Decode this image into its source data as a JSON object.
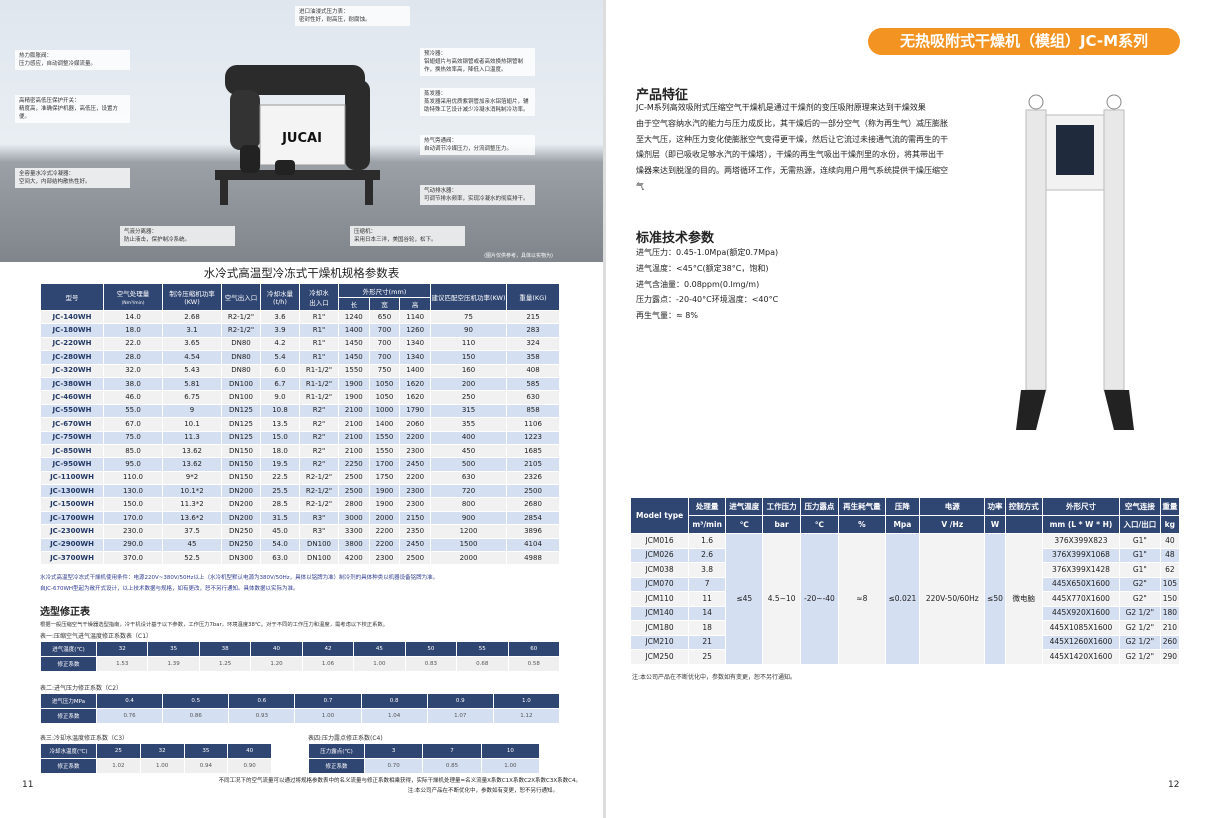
{
  "left": {
    "hero": {
      "callouts": [
        "进口油浸式压力表：\n密封性好，耐高压，耐腐蚀。",
        "热力膨胀阀：\n压力感应，自动调整冷媒流量。",
        "预冷器：\n铝翅翅片与高效钢管或者高效换热铜管制作，换热效率高，降低入口温度。",
        "高精密高低压保护开关：\n精度高，准确保护机器，高低压，设置方便。",
        "蒸发器：\n蒸发器采用优质紫铜管加亲水铝箔翅片，辅助特殊工艺设计减少冷凝水消耗制冷功率。",
        "热气旁通阀：\n自动调节冷媒压力，分流调整压力。",
        "全容量水冷式冷凝器：\n空间大，内部结构散热性好。",
        "气动排水器：\n可调节排水频率，实现冷凝水的彻底排干。",
        "气液分离器：\n防止液击，保护制冷系统。",
        "压缩机：\n采用日本三洋，美国谷轮，松下。"
      ],
      "brand": "JUCAI",
      "note": "(图片仅供参考，具体以实物为)"
    },
    "spec_title": "水冷式高温型冷冻式干燥机规格参数表",
    "spec_headers": {
      "model": "型号",
      "flow": "空气处理量",
      "flow_unit": "(Nm³/min)",
      "comp": "制冷压缩机功率(KW)",
      "port": "空气出入口",
      "water": "冷却水量(t/h)",
      "wport": "冷却水\n出入口",
      "dims": "外形尺寸(mm)",
      "l": "长",
      "w": "宽",
      "h": "高",
      "rec": "建议匹配空压机功率(KW)",
      "wt": "重量(KG)"
    },
    "spec_rows": [
      [
        "JC-140WH",
        "14.0",
        "2.68",
        "R2-1/2\"",
        "3.6",
        "R1\"",
        "1240",
        "650",
        "1140",
        "75",
        "215"
      ],
      [
        "JC-180WH",
        "18.0",
        "3.1",
        "R2-1/2\"",
        "3.9",
        "R1\"",
        "1400",
        "700",
        "1260",
        "90",
        "283"
      ],
      [
        "JC-220WH",
        "22.0",
        "3.65",
        "DN80",
        "4.2",
        "R1\"",
        "1450",
        "700",
        "1340",
        "110",
        "324"
      ],
      [
        "JC-280WH",
        "28.0",
        "4.54",
        "DN80",
        "5.4",
        "R1\"",
        "1450",
        "700",
        "1340",
        "150",
        "358"
      ],
      [
        "JC-320WH",
        "32.0",
        "5.43",
        "DN80",
        "6.0",
        "R1-1/2\"",
        "1550",
        "750",
        "1400",
        "160",
        "408"
      ],
      [
        "JC-380WH",
        "38.0",
        "5.81",
        "DN100",
        "6.7",
        "R1-1/2\"",
        "1900",
        "1050",
        "1620",
        "200",
        "585"
      ],
      [
        "JC-460WH",
        "46.0",
        "6.75",
        "DN100",
        "9.0",
        "R1-1/2\"",
        "1900",
        "1050",
        "1620",
        "250",
        "630"
      ],
      [
        "JC-550WH",
        "55.0",
        "9",
        "DN125",
        "10.8",
        "R2\"",
        "2100",
        "1000",
        "1790",
        "315",
        "858"
      ],
      [
        "JC-670WH",
        "67.0",
        "10.1",
        "DN125",
        "13.5",
        "R2\"",
        "2100",
        "1400",
        "2060",
        "355",
        "1106"
      ],
      [
        "JC-750WH",
        "75.0",
        "11.3",
        "DN125",
        "15.0",
        "R2\"",
        "2100",
        "1550",
        "2200",
        "400",
        "1223"
      ],
      [
        "JC-850WH",
        "85.0",
        "13.62",
        "DN150",
        "18.0",
        "R2\"",
        "2100",
        "1550",
        "2300",
        "450",
        "1685"
      ],
      [
        "JC-950WH",
        "95.0",
        "13.62",
        "DN150",
        "19.5",
        "R2\"",
        "2250",
        "1700",
        "2450",
        "500",
        "2105"
      ],
      [
        "JC-1100WH",
        "110.0",
        "9*2",
        "DN150",
        "22.5",
        "R2-1/2\"",
        "2500",
        "1750",
        "2200",
        "630",
        "2326"
      ],
      [
        "JC-1300WH",
        "130.0",
        "10.1*2",
        "DN200",
        "25.5",
        "R2-1/2\"",
        "2500",
        "1900",
        "2300",
        "720",
        "2500"
      ],
      [
        "JC-1500WH",
        "150.0",
        "11.3*2",
        "DN200",
        "28.5",
        "R2-1/2\"",
        "2800",
        "1900",
        "2300",
        "800",
        "2680"
      ],
      [
        "JC-1700WH",
        "170.0",
        "13.6*2",
        "DN200",
        "31.5",
        "R3\"",
        "3000",
        "2000",
        "2150",
        "900",
        "2854"
      ],
      [
        "JC-2300WH",
        "230.0",
        "37.5",
        "DN250",
        "45.0",
        "R3\"",
        "3300",
        "2200",
        "2350",
        "1200",
        "3896"
      ],
      [
        "JC-2900WH",
        "290.0",
        "45",
        "DN250",
        "54.0",
        "DN100",
        "3800",
        "2200",
        "2450",
        "1500",
        "4104"
      ],
      [
        "JC-3700WH",
        "370.0",
        "52.5",
        "DN300",
        "63.0",
        "DN100",
        "4200",
        "2300",
        "2500",
        "2000",
        "4988"
      ]
    ],
    "spec_notes": [
      "水冷式高温型冷冻式干燥机使用条件：电源220V~380V/50Hz以上（水冷机型默认电源为380V/50Hz，具体以铭牌为准）制冷剂的具体种类以机器设备铭牌为准。",
      "自JC-670WH型起为敞开式设计，以上技术数据与规格，如有更改，恕不另行通知。具体数据以实际为准。"
    ],
    "corr_title": "选型修正表",
    "corr_intro": "根据一般压缩空气干燥器选型指南，冷干机设计基于以下参数，工作压力7bar，环境温度38℃。对于不同的工作压力和温度，需考虑以下校正系数。",
    "c1": {
      "title": "表一:压缩空气进气温度修正系数表（C1）",
      "head": "进气温度(℃)",
      "vals": [
        "32",
        "35",
        "38",
        "40",
        "42",
        "45",
        "50",
        "55",
        "60"
      ],
      "row": "修正系数",
      "coef": [
        "1.53",
        "1.39",
        "1.25",
        "1.20",
        "1.06",
        "1.00",
        "0.83",
        "0.68",
        "0.58"
      ]
    },
    "c2": {
      "title": "表二:进气压力修正系数（C2）",
      "head": "进气压力MPa",
      "vals": [
        "0.4",
        "0.5",
        "0.6",
        "0.7",
        "0.8",
        "0.9",
        "1.0"
      ],
      "row": "修正系数",
      "coef": [
        "0.76",
        "0.86",
        "0.93",
        "1.00",
        "1.04",
        "1.07",
        "1.12"
      ]
    },
    "c3": {
      "title": "表三:冷却水温度修正系数（C3）",
      "head": "冷却水温度(℃)",
      "vals": [
        "25",
        "32",
        "35",
        "40"
      ],
      "row": "修正系数",
      "coef": [
        "1.02",
        "1.00",
        "0.94",
        "0.90"
      ]
    },
    "c4": {
      "title": "表四:压力露点修正系数(C4)",
      "head": "压力露点(℃)",
      "vals": [
        "3",
        "7",
        "10"
      ],
      "row": "修正系数",
      "coef": [
        "0.70",
        "0.85",
        "1.00"
      ]
    },
    "formula": "不同工况下的空气流量可以通过将规格参数表中的名义流量与修正系数相乘获得，实际干燥机处理量=名义流量X系数C1X系数C2X系数C3X系数C4。",
    "disclaimer": "注:本公司产品在不断优化中，参数如有变更，恕不另行通知。",
    "page": "11"
  },
  "right": {
    "badge": "无热吸附式干燥机（模组）JC-M系列",
    "feat_title": "产品特征",
    "feat_text": "JC-M系列高效吸附式压缩空气干燥机是通过干燥剂的变压吸附原理来达到干燥效果\n由于空气容纳水汽的能力与压力成反比，其干燥后的一部分空气（称为再生气）减压膨胀至大气压，这种压力变化使膨胀空气变得更干燥，然后让它流过未接通气流的需再生的干燥剂层（即已吸收足够水汽的干燥塔），干燥的再生气吸出干燥剂里的水份，将其带出干燥器来达到脱湿的目的。两塔循环工作，无需热源，连续向用户用气系统提供干燥压缩空气",
    "param_title": "标准技术参数",
    "params": [
      "进气压力：0.45-1.0Mpa(额定0.7Mpa)",
      "进气温度：<45°C(额定38°C，饱和)",
      "进气含油量：0.08ppm(0.lmg/m)",
      "压力露点：-20-40°C环境温度：<40°C",
      "再生气量：≈ 8%"
    ],
    "table": {
      "h1": [
        "Model type",
        "处理量",
        "进气温度",
        "工作压力",
        "压力露点",
        "再生耗气量",
        "压降",
        "电源",
        "功率",
        "控制方式",
        "外形尺寸",
        "空气连接",
        "重量"
      ],
      "h2": [
        "m³/min",
        "℃",
        "bar",
        "℃",
        "%",
        "Mpa",
        "V /Hz",
        "W",
        "",
        "mm (L * W * H)",
        "入口/出口",
        "kg"
      ],
      "shared": [
        "≤45",
        "4.5~10",
        "-20~-40",
        "≈8",
        "≤0.021",
        "220V-50/60Hz",
        "≤50",
        "微电脑"
      ],
      "rows": [
        [
          "JCM016",
          "1.6",
          "376X399X823",
          "G1\"",
          "40"
        ],
        [
          "JCM026",
          "2.6",
          "376X399X1068",
          "G1\"",
          "48"
        ],
        [
          "JCM038",
          "3.8",
          "376X399X1428",
          "G1\"",
          "62"
        ],
        [
          "JCM070",
          "7",
          "445X650X1600",
          "G2\"",
          "105"
        ],
        [
          "JCM110",
          "11",
          "445X770X1600",
          "G2\"",
          "150"
        ],
        [
          "JCM140",
          "14",
          "445X920X1600",
          "G2 1/2\"",
          "180"
        ],
        [
          "JCM180",
          "18",
          "445X1085X1600",
          "G2 1/2\"",
          "210"
        ],
        [
          "JCM210",
          "21",
          "445X1260X1600",
          "G2 1/2\"",
          "260"
        ],
        [
          "JCM250",
          "25",
          "445X1420X1600",
          "G2 1/2\"",
          "290"
        ]
      ]
    },
    "note": "注:本公司产品在不断优化中，参数如有变更，恕不另行通知。",
    "page": "12"
  },
  "colors": {
    "header": "#2f4572",
    "stripe": "#d4dff1",
    "badge": "#f39322"
  }
}
